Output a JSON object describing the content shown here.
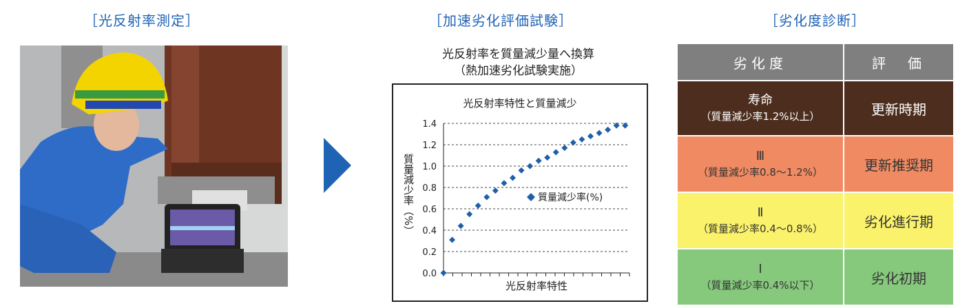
{
  "headings": {
    "photo": "［光反射率測定］",
    "test": "［加速劣化評価試験］",
    "diagnosis": "［劣化度診断］"
  },
  "chart_title": {
    "line1": "光反射率を質量減少量へ換算",
    "line2": "（熱加速劣化試験実施）"
  },
  "chart_data": {
    "type": "scatter",
    "title": "光反射率特性と質量減少",
    "xlabel": "光反射率特性",
    "ylabel": "質量減少率（%）",
    "ylim": [
      0,
      1.4
    ],
    "yticks": [
      "0.0",
      "0.2",
      "0.4",
      "0.6",
      "0.8",
      "1.0",
      "1.2",
      "1.4"
    ],
    "grid": true,
    "legend": "right",
    "series": [
      {
        "name": "質量減少率(%)",
        "color": "#1f5fa8",
        "x": [
          0,
          1,
          2,
          3,
          4,
          5,
          6,
          7,
          8,
          9,
          10,
          11,
          12,
          13,
          14,
          15,
          16,
          17,
          18,
          19,
          20,
          21
        ],
        "values": [
          0.0,
          0.31,
          0.44,
          0.55,
          0.63,
          0.71,
          0.77,
          0.84,
          0.89,
          0.96,
          1.0,
          1.05,
          1.08,
          1.13,
          1.17,
          1.22,
          1.25,
          1.28,
          1.31,
          1.34,
          1.38,
          1.38
        ]
      }
    ]
  },
  "table": {
    "headers": [
      "劣化度",
      "評　価"
    ],
    "rows": [
      {
        "level": "寿命",
        "rate": "（質量減少率1.2%以上）",
        "evaluation": "更新時期",
        "color": "#4d2e1e",
        "text_color": "#ffffff"
      },
      {
        "level": "Ⅲ",
        "rate": "（質量減少率0.8～1.2%）",
        "evaluation": "更新推奨期",
        "color": "#ef8a62",
        "text_color": "#333333"
      },
      {
        "level": "Ⅱ",
        "rate": "（質量減少率0.4～0.8%）",
        "evaluation": "劣化進行期",
        "color": "#faf26a",
        "text_color": "#333333"
      },
      {
        "level": "Ⅰ",
        "rate": "（質量減少率0.4%以下）",
        "evaluation": "劣化初期",
        "color": "#86c97c",
        "text_color": "#333333"
      }
    ]
  }
}
